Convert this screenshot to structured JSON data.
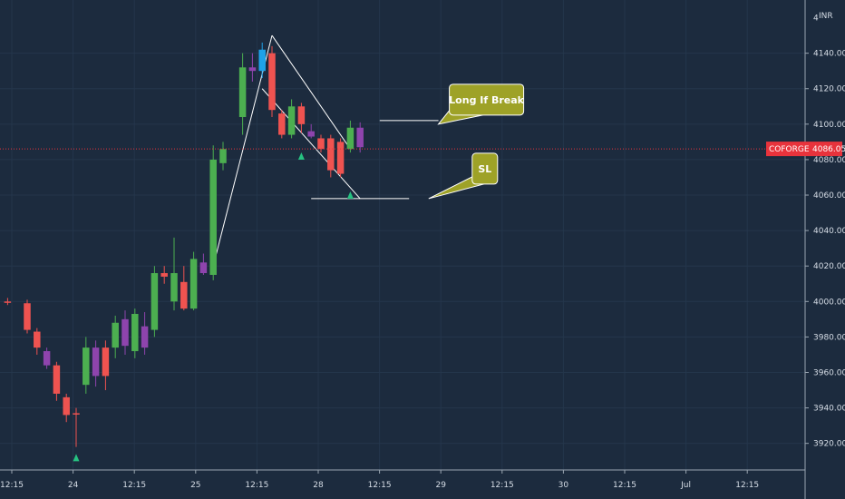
{
  "chart_data": {
    "type": "candlestick",
    "symbol": "COFORGE",
    "currency": "INR",
    "last_price": 4086.05,
    "last_price_label": "4086.05",
    "ylim": [
      3905,
      4170
    ],
    "y_ticks": [
      3920,
      3940,
      3960,
      3980,
      4000,
      4020,
      4040,
      4060,
      4080,
      4100,
      4120,
      4140
    ],
    "y_tick_labels": [
      "3920.00",
      "3940.00",
      "3960.00",
      "3980.00",
      "4000.00",
      "4020.00",
      "4040.00",
      "4060.00",
      "4080.00",
      "4100.00",
      "4120.00",
      "4140.00"
    ],
    "y_top_partial_label": "4",
    "x_ticks": [
      "12:15",
      "24",
      "12:15",
      "25",
      "12:15",
      "28",
      "12:15",
      "29",
      "12:15",
      "30",
      "12:15",
      "Jul",
      "12:15"
    ],
    "bar_count": 62,
    "candles": [
      {
        "i": 0,
        "o": 4000,
        "h": 4002,
        "l": 3998,
        "c": 4000,
        "color": "red"
      },
      {
        "i": 2,
        "o": 3999,
        "h": 4001,
        "l": 3982,
        "c": 3984,
        "color": "red"
      },
      {
        "i": 3,
        "o": 3983,
        "h": 3985,
        "l": 3970,
        "c": 3974,
        "color": "red"
      },
      {
        "i": 4,
        "o": 3972,
        "h": 3974,
        "l": 3962,
        "c": 3964,
        "color": "purple"
      },
      {
        "i": 5,
        "o": 3964,
        "h": 3966,
        "l": 3944,
        "c": 3948,
        "color": "red"
      },
      {
        "i": 6,
        "o": 3946,
        "h": 3948,
        "l": 3932,
        "c": 3936,
        "color": "red"
      },
      {
        "i": 7,
        "o": 3937,
        "h": 3940,
        "l": 3918,
        "c": 3937,
        "color": "red"
      },
      {
        "i": 8,
        "o": 3953,
        "h": 3980,
        "l": 3948,
        "c": 3974,
        "color": "green"
      },
      {
        "i": 9,
        "o": 3974,
        "h": 3978,
        "l": 3952,
        "c": 3958,
        "color": "purple"
      },
      {
        "i": 10,
        "o": 3958,
        "h": 3978,
        "l": 3950,
        "c": 3974,
        "color": "red"
      },
      {
        "i": 11,
        "o": 3974,
        "h": 3992,
        "l": 3968,
        "c": 3988,
        "color": "green"
      },
      {
        "i": 12,
        "o": 3975,
        "h": 3995,
        "l": 3970,
        "c": 3990,
        "color": "purple"
      },
      {
        "i": 13,
        "o": 3972,
        "h": 3996,
        "l": 3968,
        "c": 3993,
        "color": "green"
      },
      {
        "i": 14,
        "o": 3974,
        "h": 3994,
        "l": 3970,
        "c": 3986,
        "color": "purple"
      },
      {
        "i": 15,
        "o": 3984,
        "h": 4020,
        "l": 3980,
        "c": 4016,
        "color": "green"
      },
      {
        "i": 16,
        "o": 4016,
        "h": 4020,
        "l": 4010,
        "c": 4014,
        "color": "red"
      },
      {
        "i": 17,
        "o": 4000,
        "h": 4036,
        "l": 3995,
        "c": 4016,
        "color": "green"
      },
      {
        "i": 18,
        "o": 4011,
        "h": 4020,
        "l": 3995,
        "c": 3996,
        "color": "red"
      },
      {
        "i": 19,
        "o": 3996,
        "h": 4028,
        "l": 3995,
        "c": 4024,
        "color": "green"
      },
      {
        "i": 20,
        "o": 4022,
        "h": 4027,
        "l": 4015,
        "c": 4016,
        "color": "purple"
      },
      {
        "i": 21,
        "o": 4015,
        "h": 4088,
        "l": 4012,
        "c": 4080,
        "color": "green"
      },
      {
        "i": 22,
        "o": 4078,
        "h": 4090,
        "l": 4074,
        "c": 4086,
        "color": "green"
      },
      {
        "i": 24,
        "o": 4104,
        "h": 4140,
        "l": 4094,
        "c": 4132,
        "color": "green"
      },
      {
        "i": 25,
        "o": 4132,
        "h": 4140,
        "l": 4124,
        "c": 4130,
        "color": "purple"
      },
      {
        "i": 26,
        "o": 4130,
        "h": 4146,
        "l": 4126,
        "c": 4142,
        "color": "cyan"
      },
      {
        "i": 27,
        "o": 4140,
        "h": 4144,
        "l": 4104,
        "c": 4108,
        "color": "red"
      },
      {
        "i": 28,
        "o": 4106,
        "h": 4108,
        "l": 4092,
        "c": 4094,
        "color": "red"
      },
      {
        "i": 29,
        "o": 4094,
        "h": 4114,
        "l": 4092,
        "c": 4110,
        "color": "green"
      },
      {
        "i": 30,
        "o": 4110,
        "h": 4112,
        "l": 4095,
        "c": 4100,
        "color": "red"
      },
      {
        "i": 31,
        "o": 4096,
        "h": 4100,
        "l": 4092,
        "c": 4093,
        "color": "purple"
      },
      {
        "i": 32,
        "o": 4092,
        "h": 4094,
        "l": 4084,
        "c": 4086,
        "color": "red"
      },
      {
        "i": 33,
        "o": 4092,
        "h": 4094,
        "l": 4070,
        "c": 4074,
        "color": "red"
      },
      {
        "i": 34,
        "o": 4072,
        "h": 4092,
        "l": 4070,
        "c": 4090,
        "color": "red"
      },
      {
        "i": 35,
        "o": 4086,
        "h": 4102,
        "l": 4084,
        "c": 4098,
        "color": "green"
      },
      {
        "i": 36,
        "o": 4098,
        "h": 4101,
        "l": 4084,
        "c": 4087,
        "color": "purple"
      }
    ],
    "signal_arrows": [
      {
        "i": 7,
        "price": 3912
      },
      {
        "i": 30,
        "price": 4082
      },
      {
        "i": 35,
        "price": 4060
      }
    ],
    "trendlines": [
      {
        "from": {
          "i": 21,
          "p": 4020
        },
        "to": {
          "i": 27,
          "p": 4150
        }
      },
      {
        "from": {
          "i": 27,
          "p": 4150
        },
        "to": {
          "i": 35,
          "p": 4086
        }
      },
      {
        "from": {
          "i": 26,
          "p": 4120
        },
        "to": {
          "i": 36,
          "p": 4058
        }
      },
      {
        "from": {
          "i": 31,
          "p": 4058
        },
        "to": {
          "i": 41,
          "p": 4058
        }
      },
      {
        "from": {
          "i": 38,
          "p": 4102
        },
        "to": {
          "i": 44,
          "p": 4102
        }
      }
    ],
    "callouts": [
      {
        "text": "Long If Break",
        "anchor": {
          "i": 44,
          "p": 4100
        }
      },
      {
        "text": "SL",
        "anchor": {
          "i": 43,
          "p": 4058
        }
      }
    ]
  }
}
